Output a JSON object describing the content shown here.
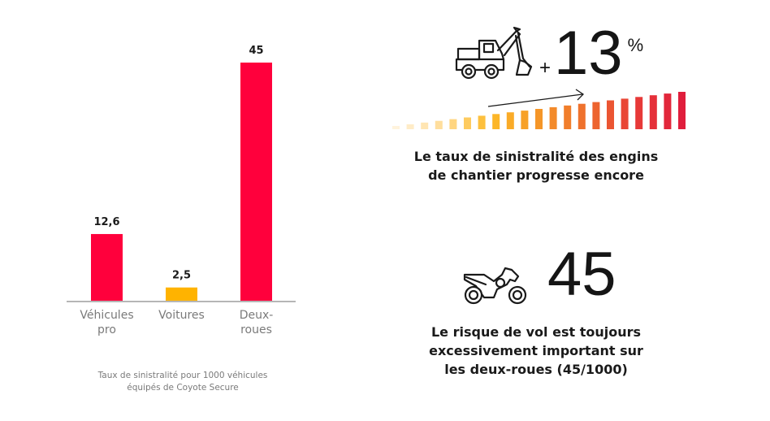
{
  "chart_data": {
    "type": "bar",
    "title": "",
    "categories": [
      "Véhicules pro",
      "Voitures",
      "Deux-roues"
    ],
    "category_lines": [
      [
        "Véhicules",
        "pro"
      ],
      [
        "Voitures"
      ],
      [
        "Deux-",
        "roues"
      ]
    ],
    "values": [
      12.6,
      2.5,
      45
    ],
    "value_labels": [
      "12,6",
      "2,5",
      "45"
    ],
    "bar_colors": [
      "#FF003C",
      "#FFB300",
      "#FF003C"
    ],
    "xlabel": "",
    "ylabel": "",
    "ylim": [
      0,
      45
    ],
    "grid": false,
    "caption": [
      "Taux de sinistralité pour 1000 véhicules",
      "équipés de Coyote Secure"
    ]
  },
  "stats": [
    {
      "icon": "excavator-icon",
      "prefix": "+",
      "value": "13",
      "suffix": "%",
      "description": [
        "Le taux de sinistralité des engins",
        "de chantier progresse encore"
      ],
      "trend_bars_count": 21,
      "trend_colors": [
        "#FFF3DC",
        "#E0202F"
      ]
    },
    {
      "icon": "motorcycle-icon",
      "value": "45",
      "description": [
        "Le risque de vol est toujours",
        "excessivement important sur",
        "les deux-roues (45/1000)"
      ]
    }
  ]
}
